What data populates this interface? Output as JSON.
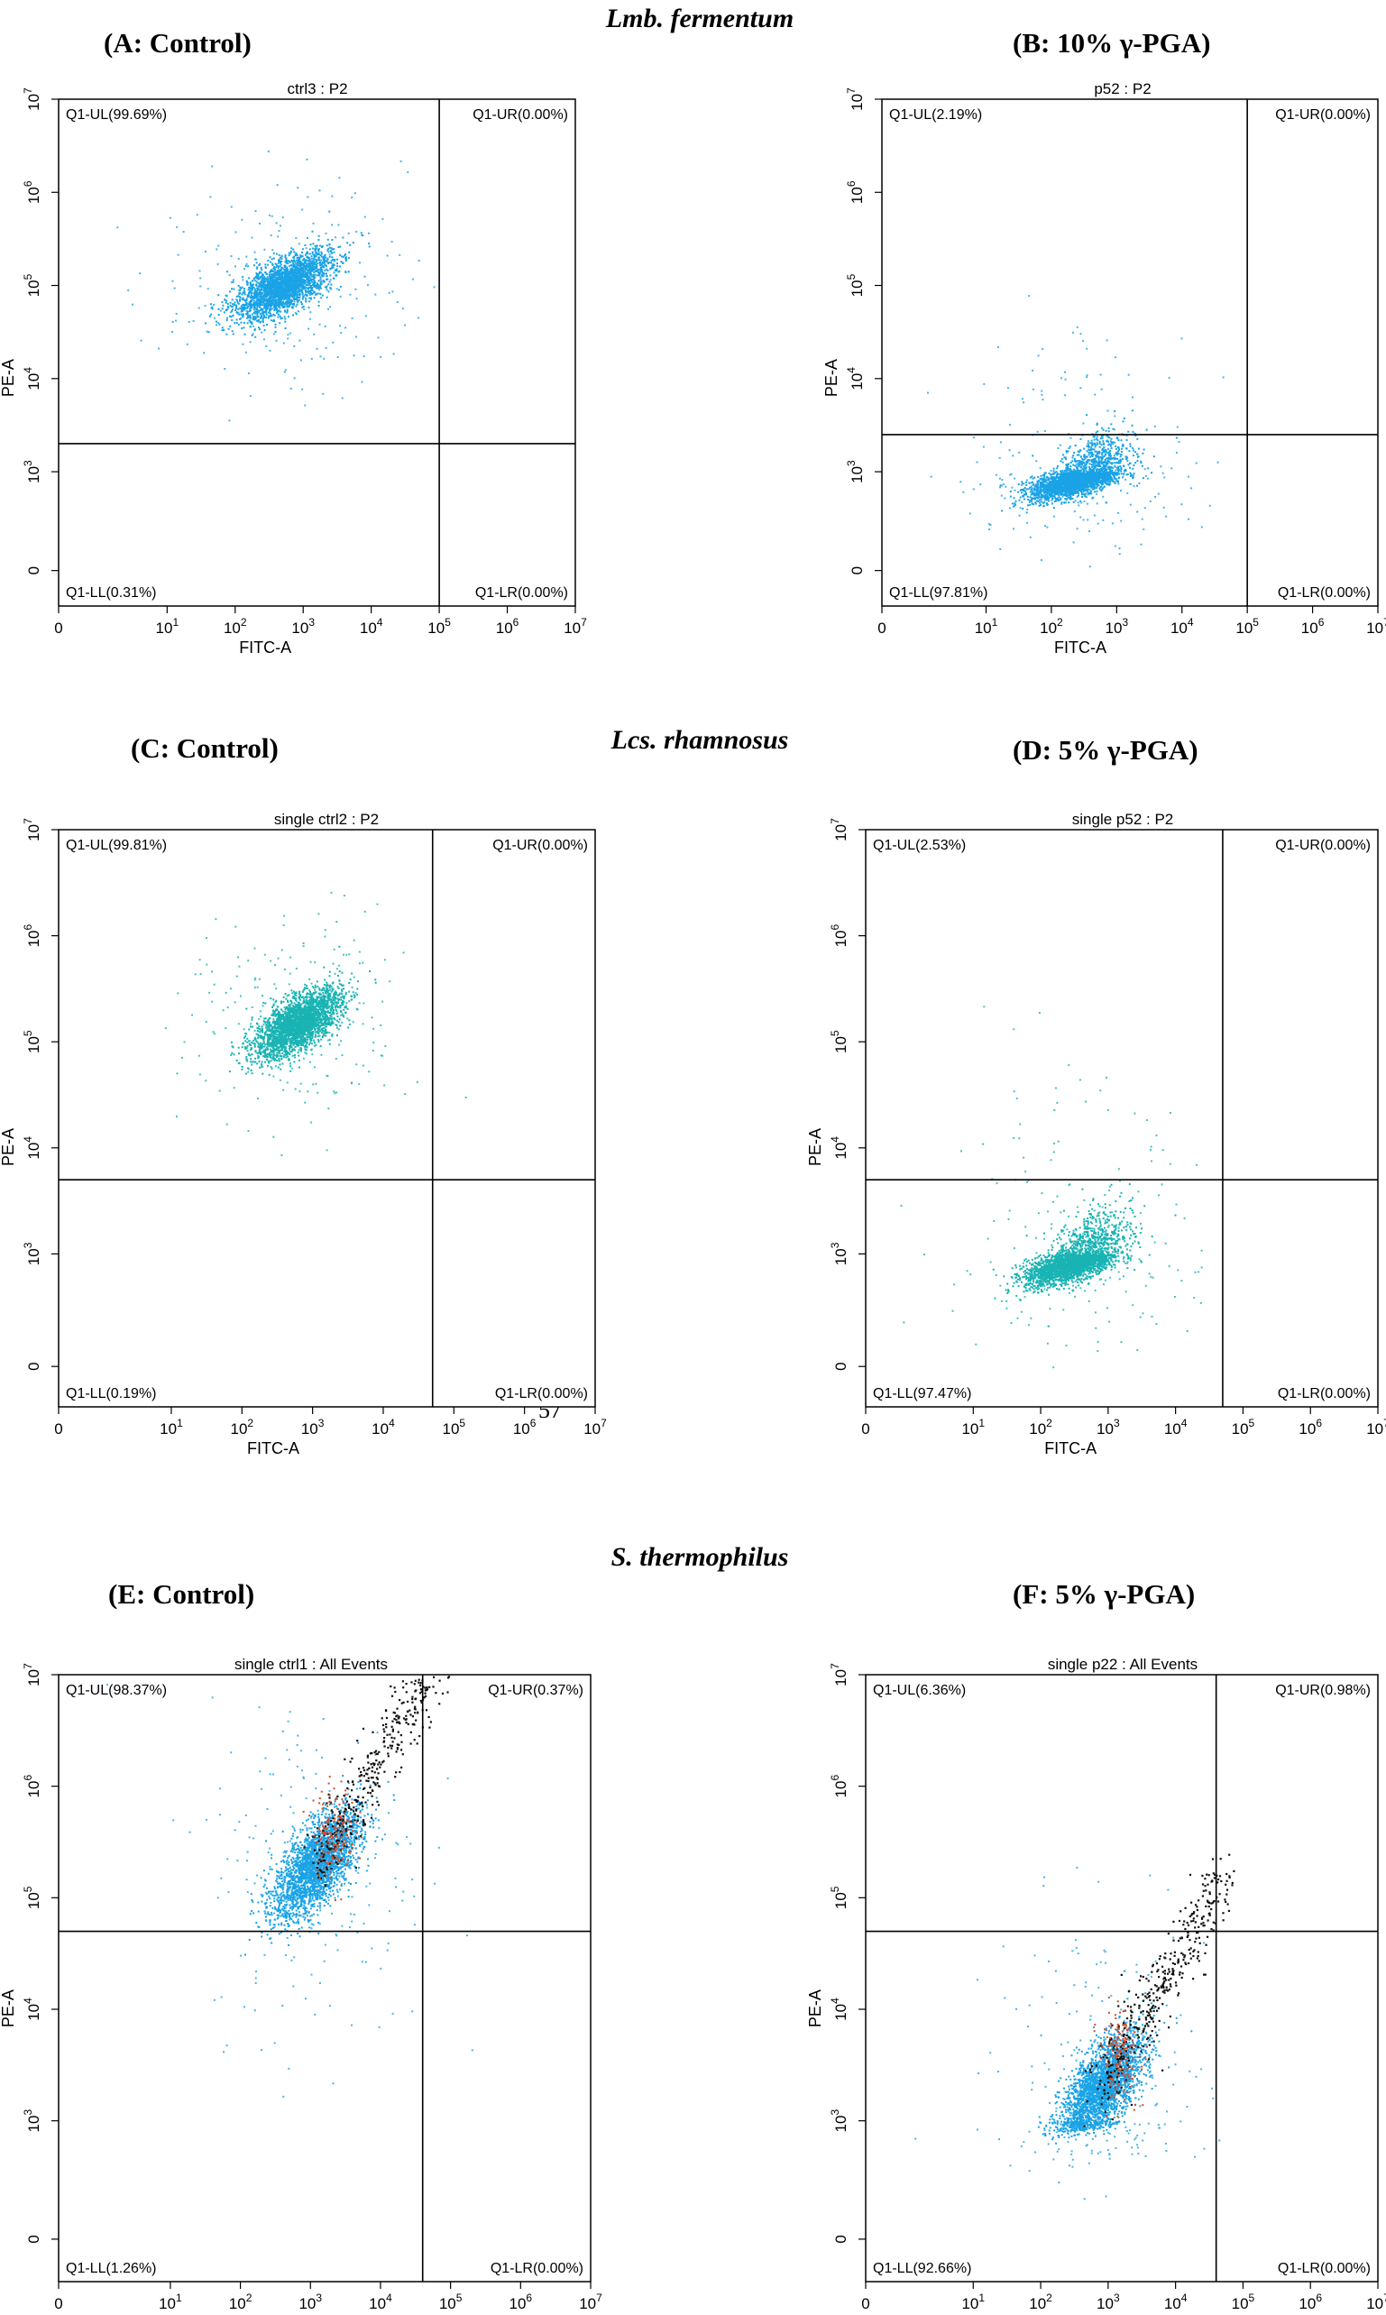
{
  "figure": {
    "groups": [
      {
        "name": "Lmb. fermentum",
        "panels": [
          0,
          1
        ]
      },
      {
        "name": "Lcs. rhamnosus",
        "panels": [
          2,
          3
        ]
      },
      {
        "name": "S. thermophilus",
        "panels": [
          4,
          5
        ]
      }
    ],
    "stray_mark": "57"
  },
  "colors": {
    "population": "#1aa3e6",
    "population_alt": "#19b3b3",
    "red_events": "#d24a2a",
    "black_events": "#111111",
    "gate_line": "#000000"
  },
  "chart_data": [
    {
      "type": "scatter",
      "label": "(A: Control)",
      "title": "ctrl3 : P2",
      "xlabel": "FITC-A",
      "ylabel": "PE-A",
      "x_ticks": [
        "0",
        "10^1",
        "10^2",
        "10^3",
        "10^4",
        "10^5",
        "10^6",
        "10^7"
      ],
      "y_ticks": [
        "0",
        "10^3",
        "10^4",
        "10^5",
        "10^6",
        "10^7"
      ],
      "gate": {
        "x": 100000,
        "y": 2000
      },
      "quadrants": {
        "UL": "Q1-UL(99.69%)",
        "UR": "Q1-UR(0.00%)",
        "LL": "Q1-LL(0.31%)",
        "LR": "Q1-LR(0.00%)"
      },
      "cluster": {
        "center": [
          500,
          100000
        ],
        "spread": [
          0.4,
          0.22
        ],
        "color": "population"
      }
    },
    {
      "type": "scatter",
      "label": "(B: 10% γ-PGA)",
      "title": "p52 : P2",
      "xlabel": "FITC-A",
      "ylabel": "PE-A",
      "x_ticks": [
        "0",
        "10^1",
        "10^2",
        "10^3",
        "10^4",
        "10^5",
        "10^6",
        "10^7"
      ],
      "y_ticks": [
        "0",
        "10^3",
        "10^4",
        "10^5",
        "10^6",
        "10^7"
      ],
      "gate": {
        "x": 100000,
        "y": 2500
      },
      "quadrants": {
        "UL": "Q1-UL(2.19%)",
        "UR": "Q1-UR(0.00%)",
        "LL": "Q1-LL(97.81%)",
        "LR": "Q1-LR(0.00%)"
      },
      "cluster": {
        "center": [
          250,
          600
        ],
        "spread": [
          0.4,
          0.35
        ],
        "color": "population"
      }
    },
    {
      "type": "scatter",
      "label": "(C: Control)",
      "title": "single ctrl2 : P2",
      "xlabel": "FITC-A",
      "ylabel": "PE-A",
      "x_ticks": [
        "0",
        "10^1",
        "10^2",
        "10^3",
        "10^4",
        "10^5",
        "10^6",
        "10^7"
      ],
      "y_ticks": [
        "0",
        "10^3",
        "10^4",
        "10^5",
        "10^6",
        "10^7"
      ],
      "gate": {
        "x": 50000,
        "y": 5000
      },
      "quadrants": {
        "UL": "Q1-UL(99.81%)",
        "UR": "Q1-UR(0.00%)",
        "LL": "Q1-LL(0.19%)",
        "LR": "Q1-LR(0.00%)"
      },
      "cluster": {
        "center": [
          600,
          150000
        ],
        "spread": [
          0.35,
          0.2
        ],
        "color": "population_alt"
      }
    },
    {
      "type": "scatter",
      "label": "(D: 5% γ-PGA)",
      "title": "single p52 : P2",
      "xlabel": "FITC-A",
      "ylabel": "PE-A",
      "x_ticks": [
        "0",
        "10^1",
        "10^2",
        "10^3",
        "10^4",
        "10^5",
        "10^6",
        "10^7"
      ],
      "y_ticks": [
        "0",
        "10^3",
        "10^4",
        "10^5",
        "10^6",
        "10^7"
      ],
      "gate": {
        "x": 50000,
        "y": 5000
      },
      "quadrants": {
        "UL": "Q1-UL(2.53%)",
        "UR": "Q1-UR(0.00%)",
        "LL": "Q1-LL(97.47%)",
        "LR": "Q1-LR(0.00%)"
      },
      "cluster": {
        "center": [
          300,
          600
        ],
        "spread": [
          0.4,
          0.35
        ],
        "color": "population_alt"
      }
    },
    {
      "type": "scatter",
      "label": "(E: Control)",
      "title": "single ctrl1 : All Events",
      "xlabel": "FITC-A",
      "ylabel": "PE-A",
      "x_ticks": [
        "0",
        "10^1",
        "10^2",
        "10^3",
        "10^4",
        "10^5",
        "10^6",
        "10^7"
      ],
      "y_ticks": [
        "0",
        "10^3",
        "10^4",
        "10^5",
        "10^6",
        "10^7"
      ],
      "gate": {
        "x": 40000,
        "y": 50000
      },
      "quadrants": {
        "UL": "Q1-UL(98.37%)",
        "UR": "Q1-UR(0.37%)",
        "LL": "Q1-LL(1.26%)",
        "LR": "Q1-LR(0.00%)"
      },
      "cluster": {
        "center": [
          1200,
          200000
        ],
        "spread": [
          0.35,
          0.3
        ],
        "color": "population"
      }
    },
    {
      "type": "scatter",
      "label": "(F: 5% γ-PGA)",
      "title": "single p22 : All Events",
      "xlabel": "FITC-A",
      "ylabel": "PE-A",
      "x_ticks": [
        "0",
        "10^1",
        "10^2",
        "10^3",
        "10^4",
        "10^5",
        "10^6",
        "10^7"
      ],
      "y_ticks": [
        "0",
        "10^3",
        "10^4",
        "10^5",
        "10^6",
        "10^7"
      ],
      "gate": {
        "x": 40000,
        "y": 50000
      },
      "quadrants": {
        "UL": "Q1-UL(6.36%)",
        "UR": "Q1-UR(0.98%)",
        "LL": "Q1-LL(92.66%)",
        "LR": "Q1-LR(0.00%)"
      },
      "cluster": {
        "center": [
          800,
          2000
        ],
        "spread": [
          0.35,
          0.3
        ],
        "color": "population"
      }
    }
  ]
}
